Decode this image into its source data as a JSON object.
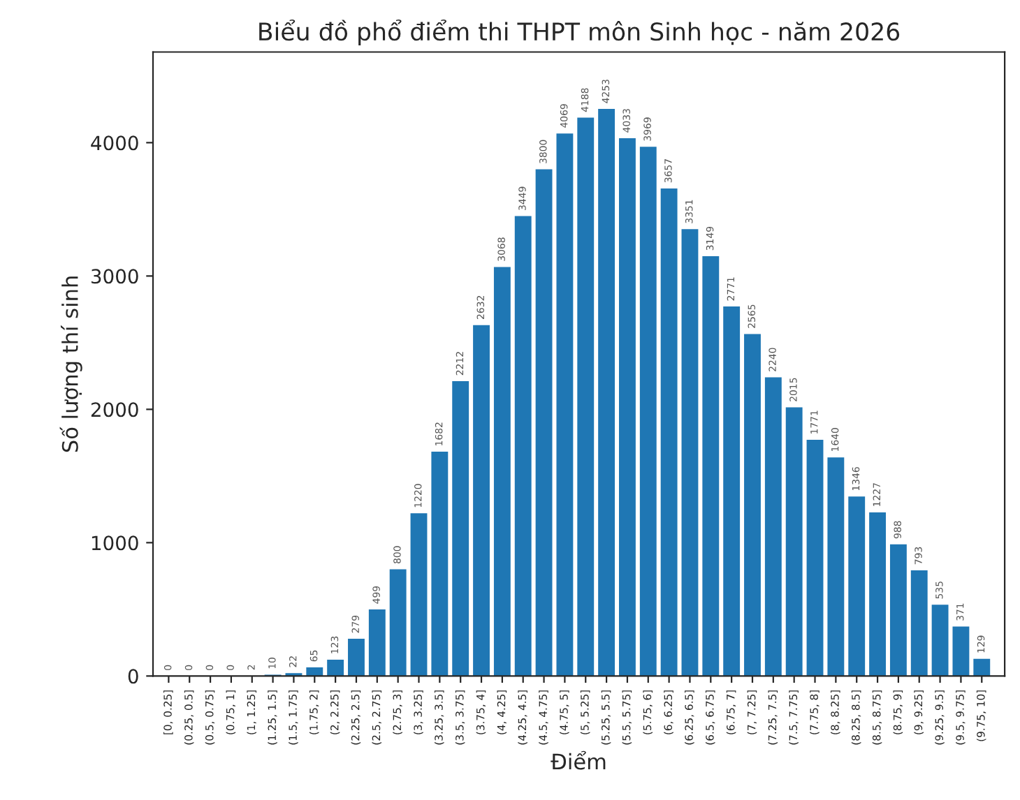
{
  "chart_data": {
    "type": "bar",
    "title": "Biểu đồ phổ điểm thi THPT môn Sinh học - năm 2026",
    "xlabel": "Điểm",
    "ylabel": "Số lượng thí sinh",
    "categories": [
      "[0, 0.25]",
      "(0.25, 0.5]",
      "(0.5, 0.75]",
      "(0.75, 1]",
      "(1, 1.25]",
      "(1.25, 1.5]",
      "(1.5, 1.75]",
      "(1.75, 2]",
      "(2, 2.25]",
      "(2.25, 2.5]",
      "(2.5, 2.75]",
      "(2.75, 3]",
      "(3, 3.25]",
      "(3.25, 3.5]",
      "(3.5, 3.75]",
      "(3.75, 4]",
      "(4, 4.25]",
      "(4.25, 4.5]",
      "(4.5, 4.75]",
      "(4.75, 5]",
      "(5, 5.25]",
      "(5.25, 5.5]",
      "(5.5, 5.75]",
      "(5.75, 6]",
      "(6, 6.25]",
      "(6.25, 6.5]",
      "(6.5, 6.75]",
      "(6.75, 7]",
      "(7, 7.25]",
      "(7.25, 7.5]",
      "(7.5, 7.75]",
      "(7.75, 8]",
      "(8, 8.25]",
      "(8.25, 8.5]",
      "(8.5, 8.75]",
      "(8.75, 9]",
      "(9, 9.25]",
      "(9.25, 9.5]",
      "(9.5, 9.75]",
      "(9.75, 10]"
    ],
    "values": [
      0,
      0,
      0,
      0,
      2,
      10,
      22,
      65,
      123,
      279,
      499,
      800,
      1220,
      1682,
      2212,
      2632,
      3068,
      3449,
      3800,
      4069,
      4188,
      4253,
      4033,
      3969,
      3657,
      3351,
      3149,
      2771,
      2565,
      2240,
      2015,
      1771,
      1640,
      1346,
      1227,
      988,
      793,
      535,
      371,
      129
    ],
    "color": "#1f77b4",
    "ylim": [
      0,
      4680
    ],
    "yticks": [
      0,
      1000,
      2000,
      3000,
      4000
    ],
    "data_labels": true,
    "grid": false
  }
}
